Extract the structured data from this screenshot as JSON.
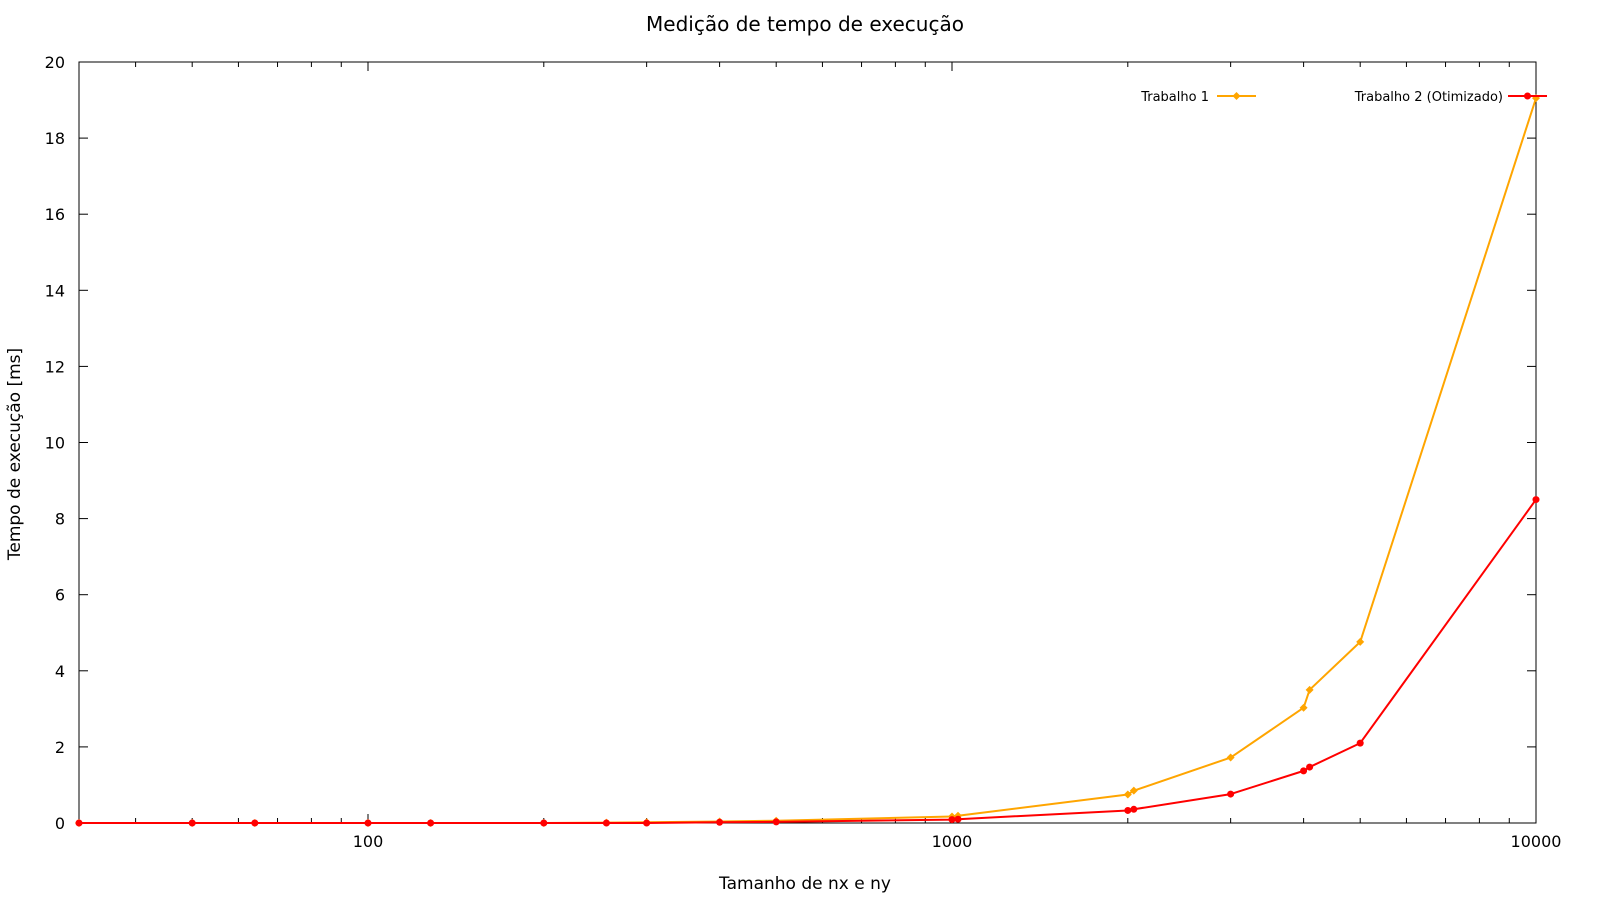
{
  "chart_data": {
    "type": "line",
    "title": "Medição de tempo de execução",
    "xlabel": "Tamanho de nx e ny",
    "ylabel": "Tempo de execução [ms]",
    "xscale": "log",
    "xlim": [
      32,
      10000
    ],
    "ylim": [
      0,
      20
    ],
    "x_ticks": [
      {
        "value": 100,
        "label": "100"
      },
      {
        "value": 1000,
        "label": "1000"
      },
      {
        "value": 10000,
        "label": "10000"
      }
    ],
    "y_ticks": [
      {
        "value": 0,
        "label": "0"
      },
      {
        "value": 2,
        "label": "2"
      },
      {
        "value": 4,
        "label": "4"
      },
      {
        "value": 6,
        "label": "6"
      },
      {
        "value": 8,
        "label": "8"
      },
      {
        "value": 10,
        "label": "10"
      },
      {
        "value": 12,
        "label": "12"
      },
      {
        "value": 14,
        "label": "14"
      },
      {
        "value": 16,
        "label": "16"
      },
      {
        "value": 18,
        "label": "18"
      },
      {
        "value": 20,
        "label": "20"
      }
    ],
    "grid": false,
    "legend_position": "top-right",
    "series": [
      {
        "name": "Trabalho 1",
        "color": "#ffa500",
        "points": [
          {
            "x": 32,
            "y": 0.0
          },
          {
            "x": 50,
            "y": 0.0
          },
          {
            "x": 64,
            "y": 0.0
          },
          {
            "x": 100,
            "y": 0.0
          },
          {
            "x": 128,
            "y": 0.0
          },
          {
            "x": 200,
            "y": 0.0
          },
          {
            "x": 256,
            "y": 0.01
          },
          {
            "x": 300,
            "y": 0.02
          },
          {
            "x": 400,
            "y": 0.04
          },
          {
            "x": 500,
            "y": 0.06
          },
          {
            "x": 1000,
            "y": 0.17
          },
          {
            "x": 1024,
            "y": 0.19
          },
          {
            "x": 2000,
            "y": 0.75
          },
          {
            "x": 2048,
            "y": 0.85
          },
          {
            "x": 3000,
            "y": 1.72
          },
          {
            "x": 4000,
            "y": 3.03
          },
          {
            "x": 4096,
            "y": 3.5
          },
          {
            "x": 5000,
            "y": 4.76
          },
          {
            "x": 10000,
            "y": 19.05
          }
        ]
      },
      {
        "name": "Trabalho 2 (Otimizado)",
        "color": "#ff0000",
        "points": [
          {
            "x": 32,
            "y": 0.0
          },
          {
            "x": 50,
            "y": 0.0
          },
          {
            "x": 64,
            "y": 0.0
          },
          {
            "x": 100,
            "y": 0.0
          },
          {
            "x": 128,
            "y": 0.0
          },
          {
            "x": 200,
            "y": 0.0
          },
          {
            "x": 256,
            "y": 0.0
          },
          {
            "x": 300,
            "y": 0.0
          },
          {
            "x": 400,
            "y": 0.02
          },
          {
            "x": 500,
            "y": 0.03
          },
          {
            "x": 1000,
            "y": 0.09
          },
          {
            "x": 1024,
            "y": 0.1
          },
          {
            "x": 2000,
            "y": 0.33
          },
          {
            "x": 2048,
            "y": 0.36
          },
          {
            "x": 3000,
            "y": 0.76
          },
          {
            "x": 4000,
            "y": 1.37
          },
          {
            "x": 4096,
            "y": 1.47
          },
          {
            "x": 5000,
            "y": 2.1
          },
          {
            "x": 10000,
            "y": 8.5
          }
        ]
      }
    ]
  }
}
